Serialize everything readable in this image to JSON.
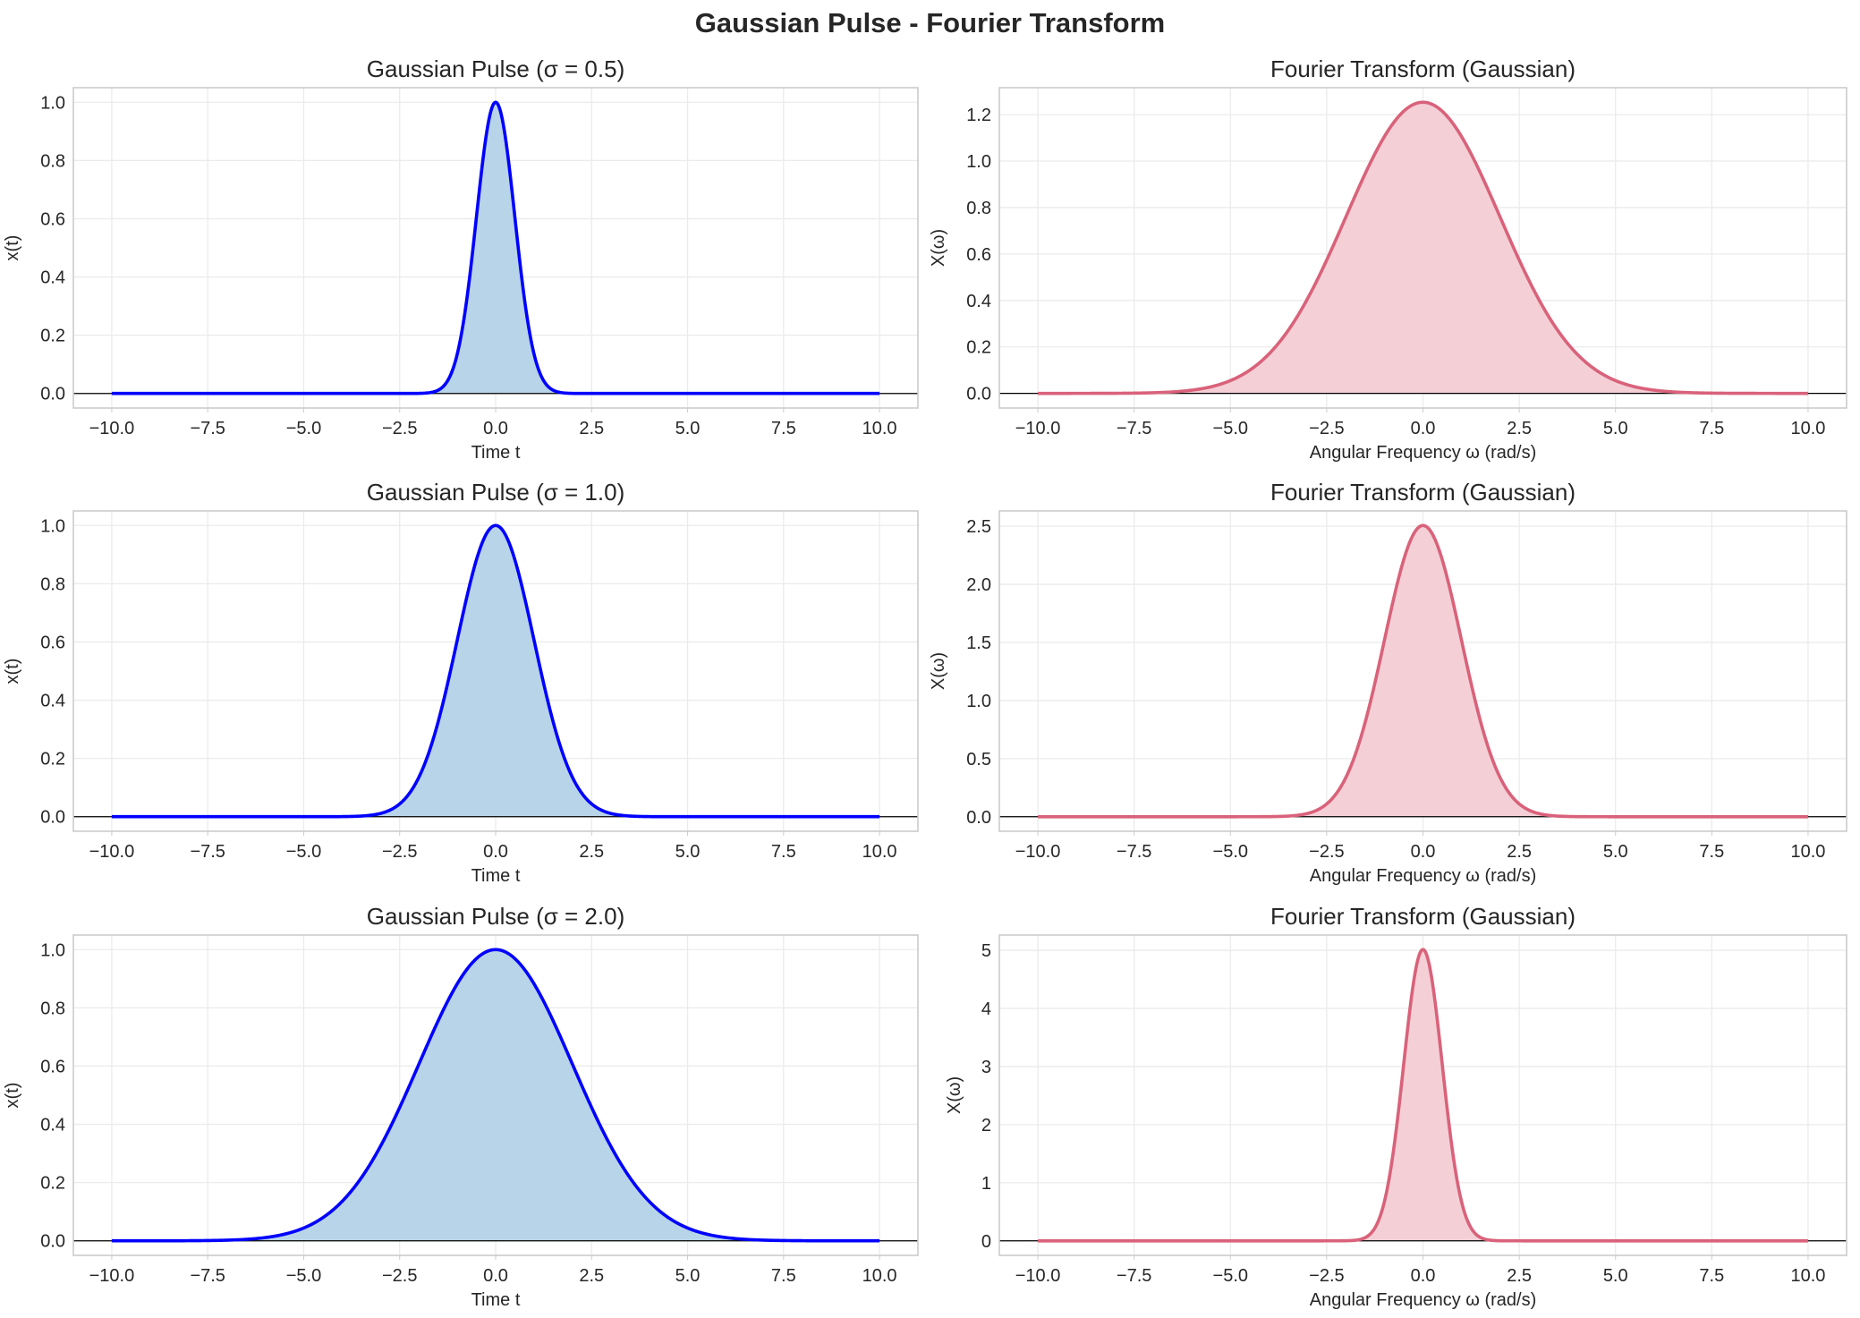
{
  "title": "Gaussian Pulse - Fourier Transform",
  "colors": {
    "time_line": "#0000ff",
    "time_fill": "#b8d4e8",
    "freq_line": "#d9627a",
    "freq_fill": "#f4cfd6",
    "grid": "#ebebeb",
    "spine": "#cccccc",
    "zero_line": "#000000"
  },
  "chart_data": [
    {
      "type": "line",
      "title": "Gaussian Pulse (σ = 0.5)",
      "xlabel": "Time t",
      "ylabel": "x(t)",
      "function": "gaussian",
      "sigma": 0.5,
      "amplitude": 1.0,
      "xlim": [
        -11,
        11
      ],
      "ylim": [
        -0.05,
        1.05
      ],
      "xticks": [
        -10,
        -7.5,
        -5,
        -2.5,
        0,
        2.5,
        5,
        7.5,
        10
      ],
      "yticks": [
        0,
        0.2,
        0.4,
        0.6,
        0.8,
        1.0
      ],
      "xtick_labels": [
        "−10.0",
        "−7.5",
        "−5.0",
        "−2.5",
        "0.0",
        "2.5",
        "5.0",
        "7.5",
        "10.0"
      ],
      "ytick_labels": [
        "0.0",
        "0.2",
        "0.4",
        "0.6",
        "0.8",
        "1.0"
      ],
      "x_range": [
        -10,
        10
      ],
      "grid": true,
      "filled": true,
      "kind": "time"
    },
    {
      "type": "line",
      "title": "Fourier Transform (Gaussian)",
      "xlabel": "Angular Frequency ω (rad/s)",
      "ylabel": "X(ω)",
      "function": "gaussian",
      "sigma": 2.0,
      "amplitude": 1.2533,
      "xlim": [
        -11,
        11
      ],
      "ylim": [
        -0.063,
        1.316
      ],
      "xticks": [
        -10,
        -7.5,
        -5,
        -2.5,
        0,
        2.5,
        5,
        7.5,
        10
      ],
      "yticks": [
        0,
        0.2,
        0.4,
        0.6,
        0.8,
        1.0,
        1.2
      ],
      "xtick_labels": [
        "−10.0",
        "−7.5",
        "−5.0",
        "−2.5",
        "0.0",
        "2.5",
        "5.0",
        "7.5",
        "10.0"
      ],
      "ytick_labels": [
        "0.0",
        "0.2",
        "0.4",
        "0.6",
        "0.8",
        "1.0",
        "1.2"
      ],
      "x_range": [
        -10,
        10
      ],
      "grid": true,
      "filled": true,
      "kind": "freq"
    },
    {
      "type": "line",
      "title": "Gaussian Pulse (σ = 1.0)",
      "xlabel": "Time t",
      "ylabel": "x(t)",
      "function": "gaussian",
      "sigma": 1.0,
      "amplitude": 1.0,
      "xlim": [
        -11,
        11
      ],
      "ylim": [
        -0.05,
        1.05
      ],
      "xticks": [
        -10,
        -7.5,
        -5,
        -2.5,
        0,
        2.5,
        5,
        7.5,
        10
      ],
      "yticks": [
        0,
        0.2,
        0.4,
        0.6,
        0.8,
        1.0
      ],
      "xtick_labels": [
        "−10.0",
        "−7.5",
        "−5.0",
        "−2.5",
        "0.0",
        "2.5",
        "5.0",
        "7.5",
        "10.0"
      ],
      "ytick_labels": [
        "0.0",
        "0.2",
        "0.4",
        "0.6",
        "0.8",
        "1.0"
      ],
      "x_range": [
        -10,
        10
      ],
      "grid": true,
      "filled": true,
      "kind": "time"
    },
    {
      "type": "line",
      "title": "Fourier Transform (Gaussian)",
      "xlabel": "Angular Frequency ω (rad/s)",
      "ylabel": "X(ω)",
      "function": "gaussian",
      "sigma": 1.0,
      "amplitude": 2.5066,
      "xlim": [
        -11,
        11
      ],
      "ylim": [
        -0.125,
        2.632
      ],
      "xticks": [
        -10,
        -7.5,
        -5,
        -2.5,
        0,
        2.5,
        5,
        7.5,
        10
      ],
      "yticks": [
        0,
        0.5,
        1.0,
        1.5,
        2.0,
        2.5
      ],
      "xtick_labels": [
        "−10.0",
        "−7.5",
        "−5.0",
        "−2.5",
        "0.0",
        "2.5",
        "5.0",
        "7.5",
        "10.0"
      ],
      "ytick_labels": [
        "0.0",
        "0.5",
        "1.0",
        "1.5",
        "2.0",
        "2.5"
      ],
      "x_range": [
        -10,
        10
      ],
      "grid": true,
      "filled": true,
      "kind": "freq"
    },
    {
      "type": "line",
      "title": "Gaussian Pulse (σ = 2.0)",
      "xlabel": "Time t",
      "ylabel": "x(t)",
      "function": "gaussian",
      "sigma": 2.0,
      "amplitude": 1.0,
      "xlim": [
        -11,
        11
      ],
      "ylim": [
        -0.05,
        1.05
      ],
      "xticks": [
        -10,
        -7.5,
        -5,
        -2.5,
        0,
        2.5,
        5,
        7.5,
        10
      ],
      "yticks": [
        0,
        0.2,
        0.4,
        0.6,
        0.8,
        1.0
      ],
      "xtick_labels": [
        "−10.0",
        "−7.5",
        "−5.0",
        "−2.5",
        "0.0",
        "2.5",
        "5.0",
        "7.5",
        "10.0"
      ],
      "ytick_labels": [
        "0.0",
        "0.2",
        "0.4",
        "0.6",
        "0.8",
        "1.0"
      ],
      "x_range": [
        -10,
        10
      ],
      "grid": true,
      "filled": true,
      "kind": "time"
    },
    {
      "type": "line",
      "title": "Fourier Transform (Gaussian)",
      "xlabel": "Angular Frequency ω (rad/s)",
      "ylabel": "X(ω)",
      "function": "gaussian",
      "sigma": 0.5,
      "amplitude": 5.0133,
      "xlim": [
        -11,
        11
      ],
      "ylim": [
        -0.25,
        5.263
      ],
      "xticks": [
        -10,
        -7.5,
        -5,
        -2.5,
        0,
        2.5,
        5,
        7.5,
        10
      ],
      "yticks": [
        0,
        1,
        2,
        3,
        4,
        5
      ],
      "xtick_labels": [
        "−10.0",
        "−7.5",
        "−5.0",
        "−2.5",
        "0.0",
        "2.5",
        "5.0",
        "7.5",
        "10.0"
      ],
      "ytick_labels": [
        "0",
        "1",
        "2",
        "3",
        "4",
        "5"
      ],
      "x_range": [
        -10,
        10
      ],
      "grid": true,
      "filled": true,
      "kind": "freq"
    }
  ]
}
